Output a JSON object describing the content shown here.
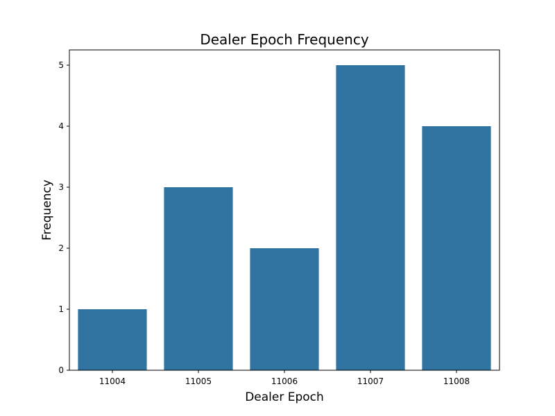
{
  "chart_data": {
    "type": "bar",
    "title": "Dealer Epoch Frequency",
    "xlabel": "Dealer Epoch",
    "ylabel": "Frequency",
    "categories": [
      "11004",
      "11005",
      "11006",
      "11007",
      "11008"
    ],
    "values": [
      1,
      3,
      2,
      5,
      4
    ],
    "ylim": [
      0,
      5.25
    ],
    "yticks": [
      0,
      1,
      2,
      3,
      4,
      5
    ],
    "bar_color": "#3274a1",
    "grid": false,
    "legend": "none"
  }
}
